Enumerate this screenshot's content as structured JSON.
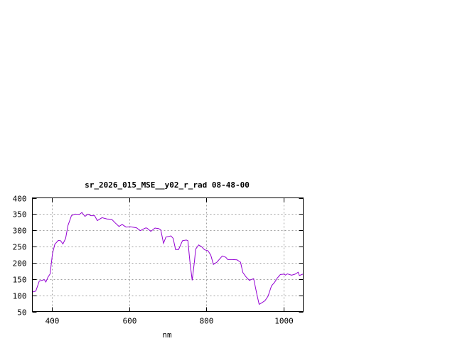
{
  "chart_data": {
    "type": "line",
    "title": "sr_2026_015_MSE__y02_r_rad 08-48-00",
    "xlabel": "nm",
    "ylabel": "",
    "xlim": [
      350,
      1050
    ],
    "ylim": [
      50,
      400
    ],
    "xticks": [
      400,
      600,
      800,
      1000
    ],
    "yticks": [
      50,
      100,
      150,
      200,
      250,
      300,
      350,
      400
    ],
    "grid": true,
    "grid_style": "dotted",
    "line_color": "#9400d3",
    "series": [
      {
        "x": [
          350,
          359,
          368,
          381,
          385,
          390,
          396,
          402,
          408,
          417,
          423,
          429,
          436,
          442,
          451,
          460,
          472,
          478,
          486,
          494,
          501,
          511,
          518,
          530,
          543,
          555,
          564,
          574,
          582,
          592,
          604,
          619,
          629,
          642,
          646,
          656,
          667,
          677,
          682,
          689,
          695,
          708,
          714,
          720,
          728,
          738,
          748,
          752,
          757,
          763,
          769,
          772,
          780,
          787,
          795,
          804,
          811,
          818,
          827,
          841,
          850,
          855,
          867,
          879,
          888,
          894,
          902,
          911,
          917,
          922,
          930,
          936,
          942,
          951,
          959,
          968,
          976,
          983,
          991,
          1001,
          1004,
          1009,
          1020,
          1029,
          1037,
          1040,
          1049
        ],
        "y": [
          110,
          113,
          144,
          148,
          141,
          155,
          166,
          228,
          257,
          269,
          268,
          258,
          275,
          315,
          345,
          350,
          349,
          355,
          343,
          350,
          345,
          345,
          330,
          339,
          335,
          334,
          323,
          312,
          318,
          310,
          311,
          308,
          299,
          307,
          307,
          297,
          307,
          305,
          301,
          260,
          279,
          283,
          275,
          241,
          241,
          268,
          270,
          268,
          206,
          146,
          206,
          242,
          255,
          250,
          240,
          237,
          224,
          195,
          202,
          221,
          217,
          210,
          210,
          209,
          202,
          170,
          157,
          146,
          149,
          151,
          104,
          72,
          76,
          83,
          97,
          129,
          140,
          153,
          164,
          165,
          162,
          166,
          162,
          165,
          171,
          161,
          165
        ]
      }
    ]
  }
}
